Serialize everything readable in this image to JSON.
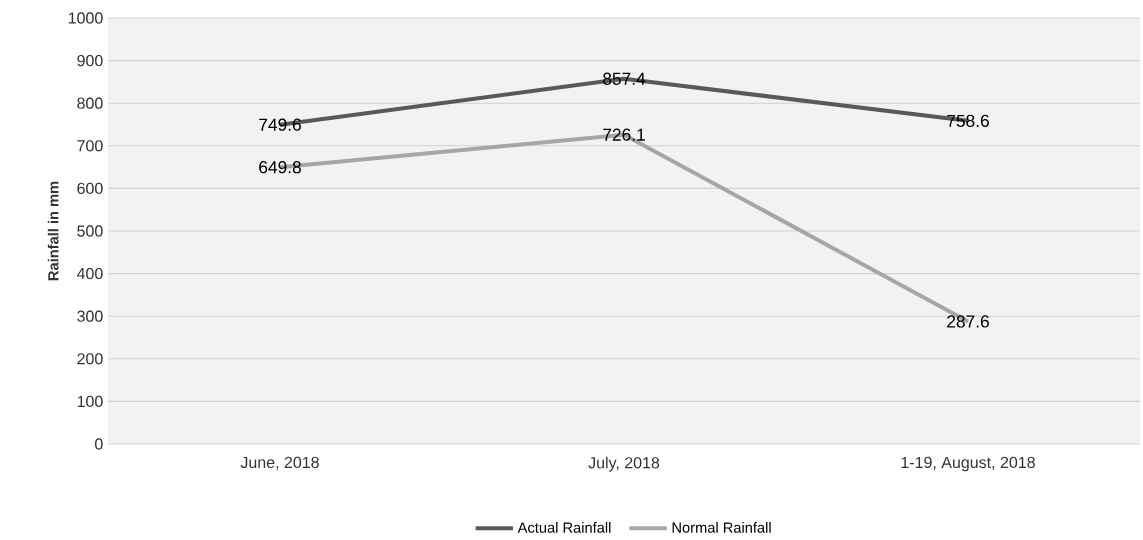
{
  "chart_data": {
    "type": "line",
    "ylabel": "Rainfall in mm",
    "categories": [
      "June, 2018",
      "July, 2018",
      "1-19, August, 2018"
    ],
    "series": [
      {
        "name": "Actual Rainfall",
        "color": "#595959",
        "values": [
          749.6,
          857.4,
          758.6
        ]
      },
      {
        "name": "Normal Rainfall",
        "color": "#a6a6a6",
        "values": [
          649.8,
          726.1,
          287.6
        ]
      }
    ],
    "ylim": [
      0,
      1000
    ],
    "yticks": [
      0,
      100,
      200,
      300,
      400,
      500,
      600,
      700,
      800,
      900,
      1000
    ],
    "grid": "y",
    "legend": "bottom",
    "data_labels": true,
    "marker": "none",
    "line_style": "solid"
  }
}
